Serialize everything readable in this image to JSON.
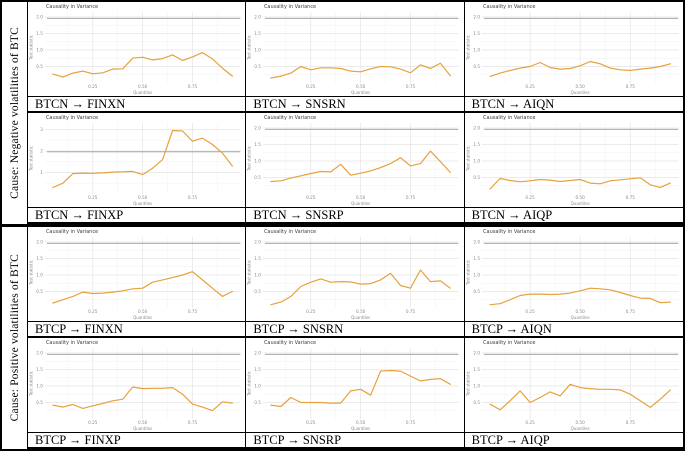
{
  "figure": {
    "groups": [
      {
        "sidebar_label": "Cause: Negative volatilities of BTC"
      },
      {
        "sidebar_label": "Cause: Positive volatilities of BTC"
      }
    ]
  },
  "colors": {
    "line": "#E6A23C",
    "refline": "#9B9B9B",
    "grid_major": "#E4E4E4",
    "grid_minor": "#F2F2F2",
    "title_text": "#3D3D3D",
    "tick_text": "#8A8A8A"
  },
  "chart_data": [
    {
      "type": "line",
      "title": "Causality in Variance",
      "label": "BTCN → FINXN",
      "xlabel": "Quantiles",
      "ylabel": "Test statistic",
      "ylim": [
        0,
        2.15
      ],
      "yticks": [
        0.5,
        1.0,
        1.5,
        2.0
      ],
      "ytick_labels": [
        "0.5",
        "1.0",
        "1.5",
        "2.0"
      ],
      "xticks": [
        0.25,
        0.5,
        0.75
      ],
      "xtick_labels": [
        "0.25",
        "0.50",
        "0.75"
      ],
      "refline": 1.96,
      "x": [
        0.05,
        0.1,
        0.15,
        0.2,
        0.25,
        0.3,
        0.35,
        0.4,
        0.45,
        0.5,
        0.55,
        0.6,
        0.65,
        0.7,
        0.75,
        0.8,
        0.85,
        0.9,
        0.95
      ],
      "y": [
        0.27,
        0.18,
        0.3,
        0.36,
        0.28,
        0.31,
        0.42,
        0.43,
        0.75,
        0.78,
        0.7,
        0.74,
        0.85,
        0.68,
        0.79,
        0.92,
        0.73,
        0.45,
        0.21
      ]
    },
    {
      "type": "line",
      "title": "Causality in Variance",
      "label": "BTCN → SNSRN",
      "xlabel": "Quantiles",
      "ylabel": "Test statistic",
      "ylim": [
        0,
        2.15
      ],
      "yticks": [
        0.5,
        1.0,
        1.5,
        2.0
      ],
      "ytick_labels": [
        "0.5",
        "1.0",
        "1.5",
        "2.0"
      ],
      "xticks": [
        0.25,
        0.5,
        0.75
      ],
      "xtick_labels": [
        "0.25",
        "0.50",
        "0.75"
      ],
      "refline": 1.96,
      "x": [
        0.05,
        0.1,
        0.15,
        0.2,
        0.25,
        0.3,
        0.35,
        0.4,
        0.45,
        0.5,
        0.55,
        0.6,
        0.65,
        0.7,
        0.75,
        0.8,
        0.85,
        0.9,
        0.95
      ],
      "y": [
        0.15,
        0.21,
        0.3,
        0.5,
        0.4,
        0.46,
        0.46,
        0.44,
        0.36,
        0.34,
        0.43,
        0.5,
        0.49,
        0.42,
        0.31,
        0.55,
        0.44,
        0.6,
        0.22
      ]
    },
    {
      "type": "line",
      "title": "Causality in Variance",
      "label": "BTCN → AIQN",
      "xlabel": "Quantiles",
      "ylabel": "Test statistic",
      "ylim": [
        0,
        2.15
      ],
      "yticks": [
        0.5,
        1.0,
        1.5,
        2.0
      ],
      "ytick_labels": [
        "0.5",
        "1.0",
        "1.5",
        "2.0"
      ],
      "xticks": [
        0.25,
        0.5,
        0.75
      ],
      "xtick_labels": [
        "0.25",
        "0.50",
        "0.75"
      ],
      "refline": 1.96,
      "x": [
        0.05,
        0.1,
        0.15,
        0.2,
        0.25,
        0.3,
        0.35,
        0.4,
        0.45,
        0.5,
        0.55,
        0.6,
        0.65,
        0.7,
        0.75,
        0.8,
        0.85,
        0.9,
        0.95
      ],
      "y": [
        0.2,
        0.3,
        0.38,
        0.45,
        0.5,
        0.62,
        0.47,
        0.42,
        0.44,
        0.52,
        0.65,
        0.58,
        0.45,
        0.4,
        0.38,
        0.42,
        0.45,
        0.5,
        0.58
      ]
    },
    {
      "type": "line",
      "title": "Causality in Variance",
      "label": "BTCN → FINXP",
      "xlabel": "Quantiles",
      "ylabel": "Test statistic",
      "ylim": [
        0,
        3.3
      ],
      "yticks": [
        1,
        2,
        3
      ],
      "ytick_labels": [
        "1",
        "2",
        "3"
      ],
      "xticks": [
        0.25,
        0.5,
        0.75
      ],
      "xtick_labels": [
        "0.25",
        "0.50",
        "0.75"
      ],
      "refline": 1.96,
      "x": [
        0.05,
        0.1,
        0.15,
        0.2,
        0.25,
        0.3,
        0.35,
        0.4,
        0.45,
        0.5,
        0.55,
        0.6,
        0.65,
        0.7,
        0.75,
        0.8,
        0.85,
        0.9,
        0.95
      ],
      "y": [
        0.3,
        0.5,
        0.95,
        0.97,
        0.96,
        0.98,
        1.02,
        1.03,
        1.05,
        0.9,
        1.2,
        1.6,
        2.95,
        2.93,
        2.45,
        2.6,
        2.3,
        1.9,
        1.3
      ]
    },
    {
      "type": "line",
      "title": "Causality in Variance",
      "label": "BTCN → SNSRP",
      "xlabel": "Quantiles",
      "ylabel": "Test statistic",
      "ylim": [
        0,
        2.15
      ],
      "yticks": [
        0.5,
        1.0,
        1.5,
        2.0
      ],
      "ytick_labels": [
        "0.5",
        "1.0",
        "1.5",
        "2.0"
      ],
      "xticks": [
        0.25,
        0.5,
        0.75
      ],
      "xtick_labels": [
        "0.25",
        "0.50",
        "0.75"
      ],
      "refline": 1.96,
      "x": [
        0.05,
        0.1,
        0.15,
        0.2,
        0.25,
        0.3,
        0.35,
        0.4,
        0.45,
        0.5,
        0.55,
        0.6,
        0.65,
        0.7,
        0.75,
        0.8,
        0.85,
        0.9,
        0.95
      ],
      "y": [
        0.38,
        0.4,
        0.48,
        0.55,
        0.62,
        0.68,
        0.67,
        0.9,
        0.57,
        0.63,
        0.7,
        0.8,
        0.92,
        1.1,
        0.85,
        0.92,
        1.3,
        0.98,
        0.65
      ]
    },
    {
      "type": "line",
      "title": "Causality in Variance",
      "label": "BTCN → AIQP",
      "xlabel": "Quantiles",
      "ylabel": "Test statistic",
      "ylim": [
        0,
        2.15
      ],
      "yticks": [
        0.5,
        1.0,
        1.5,
        2.0
      ],
      "ytick_labels": [
        "0.5",
        "1.0",
        "1.5",
        "2.0"
      ],
      "xticks": [
        0.25,
        0.5,
        0.75
      ],
      "xtick_labels": [
        "0.25",
        "0.50",
        "0.75"
      ],
      "refline": 1.96,
      "x": [
        0.05,
        0.1,
        0.15,
        0.2,
        0.25,
        0.3,
        0.35,
        0.4,
        0.45,
        0.5,
        0.55,
        0.6,
        0.65,
        0.7,
        0.75,
        0.8,
        0.85,
        0.9,
        0.95
      ],
      "y": [
        0.15,
        0.47,
        0.41,
        0.37,
        0.4,
        0.44,
        0.42,
        0.38,
        0.41,
        0.44,
        0.33,
        0.31,
        0.4,
        0.43,
        0.46,
        0.49,
        0.28,
        0.2,
        0.33
      ]
    },
    {
      "type": "line",
      "title": "Causality in Variance",
      "label": "BTCP → FINXN",
      "xlabel": "Quantiles",
      "ylabel": "Test statistic",
      "ylim": [
        0,
        2.15
      ],
      "yticks": [
        0.5,
        1.0,
        1.5,
        2.0
      ],
      "ytick_labels": [
        "0.5",
        "1.0",
        "1.5",
        "2.0"
      ],
      "xticks": [
        0.25,
        0.5,
        0.75
      ],
      "xtick_labels": [
        "0.25",
        "0.50",
        "0.75"
      ],
      "refline": 1.96,
      "x": [
        0.05,
        0.1,
        0.15,
        0.2,
        0.25,
        0.3,
        0.35,
        0.4,
        0.45,
        0.5,
        0.55,
        0.6,
        0.65,
        0.7,
        0.75,
        0.8,
        0.85,
        0.9,
        0.95
      ],
      "y": [
        0.15,
        0.25,
        0.35,
        0.48,
        0.44,
        0.45,
        0.48,
        0.52,
        0.58,
        0.6,
        0.78,
        0.85,
        0.92,
        1.0,
        1.1,
        0.85,
        0.6,
        0.35,
        0.5
      ]
    },
    {
      "type": "line",
      "title": "Causality in Variance",
      "label": "BTCP → SNSRN",
      "xlabel": "Quantiles",
      "ylabel": "Test statistic",
      "ylim": [
        0,
        2.15
      ],
      "yticks": [
        0.5,
        1.0,
        1.5,
        2.0
      ],
      "ytick_labels": [
        "0.5",
        "1.0",
        "1.5",
        "2.0"
      ],
      "xticks": [
        0.25,
        0.5,
        0.75
      ],
      "xtick_labels": [
        "0.25",
        "0.50",
        "0.75"
      ],
      "refline": 1.96,
      "x": [
        0.05,
        0.1,
        0.15,
        0.2,
        0.25,
        0.3,
        0.35,
        0.4,
        0.45,
        0.5,
        0.55,
        0.6,
        0.65,
        0.7,
        0.75,
        0.8,
        0.85,
        0.9,
        0.95
      ],
      "y": [
        0.1,
        0.18,
        0.35,
        0.65,
        0.78,
        0.88,
        0.78,
        0.8,
        0.79,
        0.72,
        0.74,
        0.85,
        1.05,
        0.68,
        0.6,
        1.15,
        0.8,
        0.82,
        0.6
      ]
    },
    {
      "type": "line",
      "title": "Causality in Variance",
      "label": "BTCP → AIQN",
      "xlabel": "Quantiles",
      "ylabel": "Test statistic",
      "ylim": [
        0,
        2.15
      ],
      "yticks": [
        0.5,
        1.0,
        1.5,
        2.0
      ],
      "ytick_labels": [
        "0.5",
        "1.0",
        "1.5",
        "2.0"
      ],
      "xticks": [
        0.25,
        0.5,
        0.75
      ],
      "xtick_labels": [
        "0.25",
        "0.50",
        "0.75"
      ],
      "refline": 1.96,
      "x": [
        0.05,
        0.1,
        0.15,
        0.2,
        0.25,
        0.3,
        0.35,
        0.4,
        0.45,
        0.5,
        0.55,
        0.6,
        0.65,
        0.7,
        0.75,
        0.8,
        0.85,
        0.9,
        0.95
      ],
      "y": [
        0.1,
        0.13,
        0.25,
        0.38,
        0.42,
        0.42,
        0.41,
        0.42,
        0.45,
        0.52,
        0.6,
        0.58,
        0.55,
        0.47,
        0.38,
        0.3,
        0.29,
        0.16,
        0.18
      ]
    },
    {
      "type": "line",
      "title": "Causality in Variance",
      "label": "BTCP → FINXP",
      "xlabel": "Quantiles",
      "ylabel": "Test statistic",
      "ylim": [
        0,
        2.15
      ],
      "yticks": [
        0.5,
        1.0,
        1.5,
        2.0
      ],
      "ytick_labels": [
        "0.5",
        "1.0",
        "1.5",
        "2.0"
      ],
      "xticks": [
        0.25,
        0.5,
        0.75
      ],
      "xtick_labels": [
        "0.25",
        "0.50",
        "0.75"
      ],
      "refline": 1.96,
      "x": [
        0.05,
        0.1,
        0.15,
        0.2,
        0.25,
        0.3,
        0.35,
        0.4,
        0.45,
        0.5,
        0.55,
        0.6,
        0.65,
        0.7,
        0.75,
        0.8,
        0.85,
        0.9,
        0.95
      ],
      "y": [
        0.42,
        0.36,
        0.44,
        0.32,
        0.4,
        0.47,
        0.55,
        0.6,
        0.97,
        0.92,
        0.93,
        0.93,
        0.95,
        0.75,
        0.45,
        0.36,
        0.25,
        0.52,
        0.48
      ]
    },
    {
      "type": "line",
      "title": "Causality in Variance",
      "label": "BTCP → SNSRP",
      "xlabel": "Quantiles",
      "ylabel": "Test statistic",
      "ylim": [
        0,
        2.15
      ],
      "yticks": [
        0.5,
        1.0,
        1.5,
        2.0
      ],
      "ytick_labels": [
        "0.5",
        "1.0",
        "1.5",
        "2.0"
      ],
      "xticks": [
        0.25,
        0.5,
        0.75
      ],
      "xtick_labels": [
        "0.25",
        "0.50",
        "0.75"
      ],
      "refline": 1.96,
      "x": [
        0.05,
        0.1,
        0.15,
        0.2,
        0.25,
        0.3,
        0.35,
        0.4,
        0.45,
        0.5,
        0.55,
        0.6,
        0.65,
        0.7,
        0.75,
        0.8,
        0.85,
        0.9,
        0.95
      ],
      "y": [
        0.42,
        0.38,
        0.65,
        0.5,
        0.5,
        0.5,
        0.48,
        0.48,
        0.85,
        0.9,
        0.72,
        1.45,
        1.47,
        1.45,
        1.3,
        1.15,
        1.2,
        1.22,
        1.05
      ]
    },
    {
      "type": "line",
      "title": "Causality in Variance",
      "label": "BTCP → AIQP",
      "xlabel": "Quantiles",
      "ylabel": "Test statistic",
      "ylim": [
        0,
        2.15
      ],
      "yticks": [
        0.5,
        1.0,
        1.5,
        2.0
      ],
      "ytick_labels": [
        "0.5",
        "1.0",
        "1.5",
        "2.0"
      ],
      "xticks": [
        0.25,
        0.5,
        0.75
      ],
      "xtick_labels": [
        "0.25",
        "0.50",
        "0.75"
      ],
      "refline": 1.96,
      "x": [
        0.05,
        0.1,
        0.15,
        0.2,
        0.25,
        0.3,
        0.35,
        0.4,
        0.45,
        0.5,
        0.55,
        0.6,
        0.65,
        0.7,
        0.75,
        0.8,
        0.85,
        0.9,
        0.95
      ],
      "y": [
        0.45,
        0.28,
        0.55,
        0.85,
        0.5,
        0.65,
        0.82,
        0.7,
        1.05,
        0.95,
        0.92,
        0.9,
        0.9,
        0.88,
        0.75,
        0.55,
        0.35,
        0.6,
        0.88
      ]
    }
  ]
}
